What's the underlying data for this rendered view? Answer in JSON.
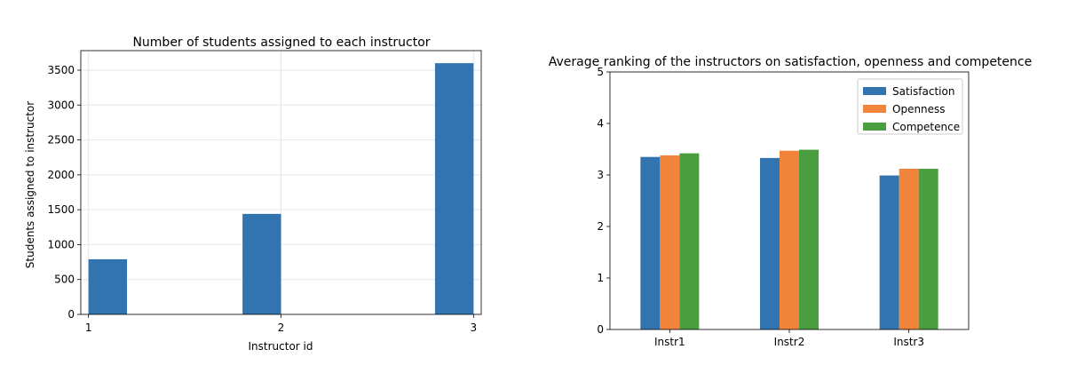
{
  "chart_data": [
    {
      "type": "bar",
      "title": "Number of students assigned to each instructor",
      "xlabel": "Instructor id",
      "ylabel": "Students assigned to instructor",
      "categories": [
        "1",
        "2",
        "3"
      ],
      "values": [
        790,
        1440,
        3600
      ],
      "xlim": [
        0.96,
        3.04
      ],
      "ylim": [
        0,
        3780
      ],
      "xticks": [
        "1",
        "2",
        "3"
      ],
      "yticks": [
        "0",
        "500",
        "1000",
        "1500",
        "2000",
        "2500",
        "3000",
        "3500"
      ],
      "grid": true,
      "color": "#3274b0"
    },
    {
      "type": "bar",
      "title": "Average ranking of the instructors on satisfaction, openness and competence",
      "xlabel": "",
      "ylabel": "",
      "categories": [
        "Instr1",
        "Instr2",
        "Instr3"
      ],
      "series": [
        {
          "name": "Satisfaction",
          "values": [
            3.35,
            3.33,
            2.99
          ],
          "color": "#3274b0"
        },
        {
          "name": "Openness",
          "values": [
            3.38,
            3.47,
            3.12
          ],
          "color": "#f0843a"
        },
        {
          "name": "Competence",
          "values": [
            3.42,
            3.49,
            3.12
          ],
          "color": "#4a9e3f"
        }
      ],
      "ylim": [
        0,
        5
      ],
      "yticks": [
        "0",
        "1",
        "2",
        "3",
        "4",
        "5"
      ],
      "grid": false,
      "legend": "top-right"
    }
  ]
}
